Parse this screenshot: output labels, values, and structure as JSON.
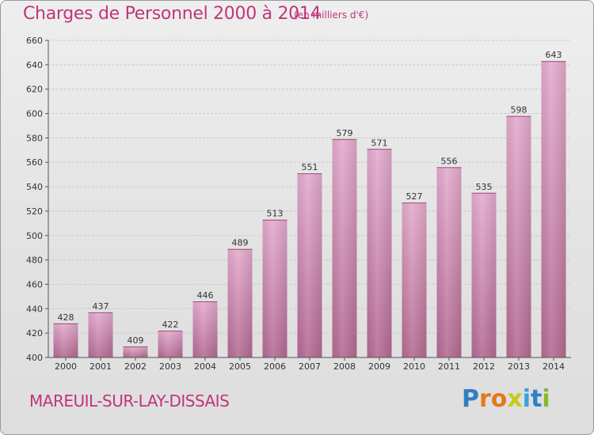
{
  "chart_data": {
    "type": "bar",
    "title": "Charges de Personnel 2000 à 2014",
    "subtitle": "(en milliers d'€)",
    "categories": [
      "2000",
      "2001",
      "2002",
      "2003",
      "2004",
      "2005",
      "2006",
      "2007",
      "2008",
      "2009",
      "2010",
      "2011",
      "2012",
      "2013",
      "2014"
    ],
    "values": [
      428,
      437,
      409,
      422,
      446,
      489,
      513,
      551,
      579,
      571,
      527,
      556,
      535,
      598,
      643
    ],
    "ylim": [
      400,
      660
    ],
    "yticks": [
      400,
      420,
      440,
      460,
      480,
      500,
      520,
      540,
      560,
      580,
      600,
      620,
      640,
      660
    ],
    "xlabel": "",
    "ylabel": "",
    "grid": true
  },
  "commune": "MAREUIL-SUR-LAY-DISSAIS",
  "logo": {
    "letters": [
      "P",
      "r",
      "o",
      "x",
      "i",
      "t",
      "i"
    ],
    "colors": [
      "#2f7fc4",
      "#e07b1c",
      "#e07b1c",
      "#c8c81c",
      "#3aa0d8",
      "#2f7fc4",
      "#8ab82c"
    ]
  },
  "colors": {
    "accent": "#c0357a",
    "bar_top": "#e3a9cc",
    "bar_bottom": "#b66c95"
  }
}
